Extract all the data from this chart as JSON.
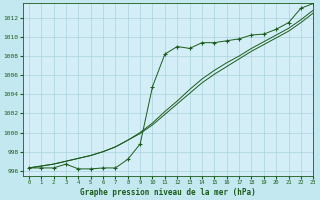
{
  "title": "Graphe pression niveau de la mer (hPa)",
  "background_color": "#c4e8f0",
  "plot_bg": "#d4eef8",
  "grid_color": "#aad4dc",
  "line_color": "#1a5c1a",
  "xlim": [
    -0.5,
    23
  ],
  "ylim": [
    995.5,
    1013.5
  ],
  "yticks": [
    996,
    998,
    1000,
    1002,
    1004,
    1006,
    1008,
    1010,
    1012
  ],
  "xticks": [
    0,
    1,
    2,
    3,
    4,
    5,
    6,
    7,
    8,
    9,
    10,
    11,
    12,
    13,
    14,
    15,
    16,
    17,
    18,
    19,
    20,
    21,
    22,
    23
  ],
  "series1": [
    996.3,
    996.3,
    996.3,
    996.7,
    996.2,
    996.2,
    996.3,
    996.3,
    997.2,
    998.8,
    1004.8,
    1008.2,
    1009.0,
    1008.8,
    1009.4,
    1009.4,
    1009.6,
    1009.8,
    1010.2,
    1010.3,
    1010.8,
    1011.5,
    1013.0,
    1013.5
  ],
  "series2": [
    996.3,
    996.5,
    996.7,
    997.0,
    997.3,
    997.6,
    998.0,
    998.5,
    999.2,
    1000.0,
    1001.0,
    1002.2,
    1003.3,
    1004.5,
    1005.6,
    1006.5,
    1007.3,
    1008.0,
    1008.8,
    1009.5,
    1010.2,
    1010.9,
    1011.8,
    1012.8
  ],
  "series3": [
    996.3,
    996.5,
    996.7,
    997.0,
    997.3,
    997.6,
    998.0,
    998.5,
    999.2,
    999.9,
    1000.8,
    1001.9,
    1003.0,
    1004.1,
    1005.2,
    1006.1,
    1006.9,
    1007.7,
    1008.5,
    1009.2,
    1009.9,
    1010.6,
    1011.5,
    1012.5
  ]
}
